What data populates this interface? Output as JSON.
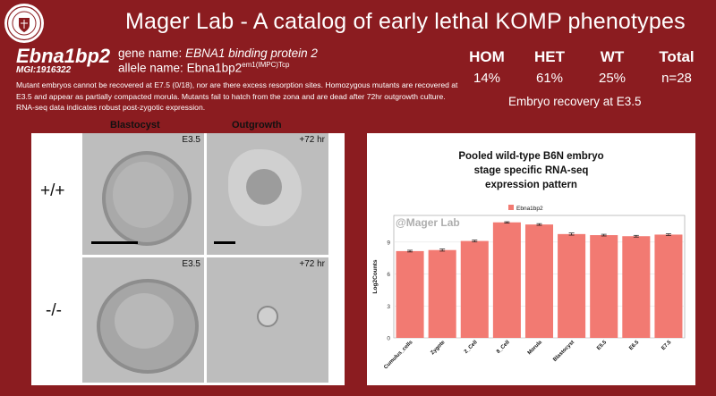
{
  "header": {
    "title": "Mager Lab - A catalog of early lethal KOMP phenotypes"
  },
  "gene": {
    "symbol": "Ebna1bp2",
    "mgi": "MGI:1916322",
    "name_label": "gene name:",
    "name": "EBNA1 binding protein 2",
    "allele_label": "allele name:",
    "allele": "Ebna1bp2",
    "allele_sup": "em1(IMPC)Tcp"
  },
  "description": "Mutant embryos cannot be recovered at E7.5 (0/18), nor are there excess resorption sites. Homozygous mutants are recovered at E3.5 and appear as partially compacted morula. Mutants fail to hatch from the zona and are dead after 72hr outgrowth culture. RNA-seq data indicates robust post-zygotic expression.",
  "stats": {
    "columns": [
      {
        "header": "HOM",
        "value": "14%"
      },
      {
        "header": "HET",
        "value": "61%"
      },
      {
        "header": "WT",
        "value": "25%"
      },
      {
        "header": "Total",
        "value": "n=28"
      }
    ],
    "caption": "Embryo recovery at E3.5"
  },
  "images": {
    "col_blastocyst": "Blastocyst",
    "col_outgrowth": "Outgrowth",
    "row_wt": "+/+",
    "row_mut": "-/-",
    "tag_e35": "E3.5",
    "tag_72": "+72 hr"
  },
  "chart_title_lines": [
    "Pooled wild-type B6N embryo",
    "stage specific RNA-seq",
    "expression pattern"
  ],
  "chart_data": {
    "type": "bar",
    "legend": "Ebna1bp2",
    "watermark": "@Mager Lab",
    "ylabel": "Log2Counts",
    "categories": [
      "Cumulus_cells",
      "Zygote",
      "2_Cell",
      "8_Cell",
      "Morula",
      "Blastocyst",
      "E5.5",
      "E6.5",
      "E7.5"
    ],
    "values": [
      8.15,
      8.25,
      9.1,
      10.85,
      10.65,
      9.75,
      9.65,
      9.55,
      9.7
    ],
    "errors": [
      0.08,
      0.1,
      0.08,
      0.06,
      0.08,
      0.1,
      0.08,
      0.08,
      0.08
    ],
    "yticks": [
      0,
      3,
      6,
      9
    ],
    "ylim": [
      0,
      11.5
    ],
    "color": "#f27a72"
  },
  "colors": {
    "background": "#8b1c20",
    "bar": "#f27a72"
  }
}
